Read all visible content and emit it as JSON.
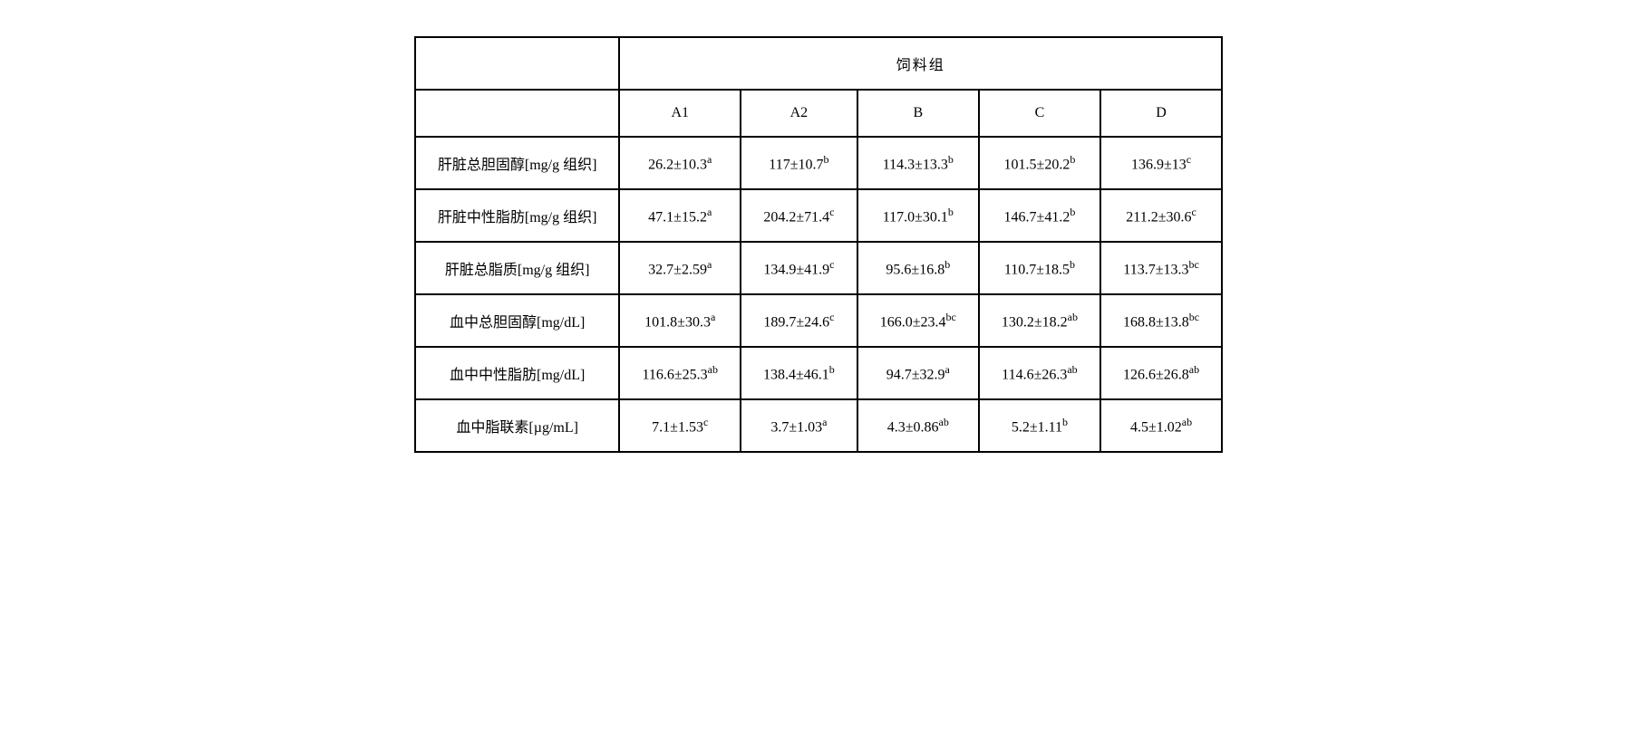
{
  "table": {
    "type": "table",
    "header_group_label": "饲料组",
    "columns": [
      "A1",
      "A2",
      "B",
      "C",
      "D"
    ],
    "header_fontsize": 20,
    "cell_fontsize": 20,
    "border_color": "#000000",
    "background_color": "#ffffff",
    "text_color": "#000000",
    "border_width": 2,
    "cell_padding_v": 16,
    "cell_padding_h": 24,
    "rows": [
      {
        "label": "肝脏总胆固醇[mg/g 组织]",
        "values": [
          {
            "val": "26.2±10.3",
            "sup": "a"
          },
          {
            "val": "117±10.7",
            "sup": "b"
          },
          {
            "val": "114.3±13.3",
            "sup": "b"
          },
          {
            "val": "101.5±20.2",
            "sup": "b"
          },
          {
            "val": "136.9±13",
            "sup": "c"
          }
        ]
      },
      {
        "label": "肝脏中性脂肪[mg/g 组织]",
        "values": [
          {
            "val": "47.1±15.2",
            "sup": "a"
          },
          {
            "val": "204.2±71.4",
            "sup": "c"
          },
          {
            "val": "117.0±30.1",
            "sup": "b"
          },
          {
            "val": "146.7±41.2",
            "sup": "b"
          },
          {
            "val": "211.2±30.6",
            "sup": "c"
          }
        ]
      },
      {
        "label": "肝脏总脂质[mg/g 组织]",
        "values": [
          {
            "val": "32.7±2.59",
            "sup": "a"
          },
          {
            "val": "134.9±41.9",
            "sup": "c"
          },
          {
            "val": "95.6±16.8",
            "sup": "b"
          },
          {
            "val": "110.7±18.5",
            "sup": "b"
          },
          {
            "val": "113.7±13.3",
            "sup": "bc"
          }
        ]
      },
      {
        "label": "血中总胆固醇[mg/dL]",
        "values": [
          {
            "val": "101.8±30.3",
            "sup": "a"
          },
          {
            "val": "189.7±24.6",
            "sup": "c"
          },
          {
            "val": "166.0±23.4",
            "sup": "bc"
          },
          {
            "val": "130.2±18.2",
            "sup": "ab"
          },
          {
            "val": "168.8±13.8",
            "sup": "bc"
          }
        ]
      },
      {
        "label": "血中中性脂肪[mg/dL]",
        "values": [
          {
            "val": "116.6±25.3",
            "sup": "ab"
          },
          {
            "val": "138.4±46.1",
            "sup": "b"
          },
          {
            "val": "94.7±32.9",
            "sup": "a"
          },
          {
            "val": "114.6±26.3",
            "sup": "ab"
          },
          {
            "val": "126.6±26.8",
            "sup": "ab"
          }
        ]
      },
      {
        "label": "血中脂联素[µg/mL]",
        "values": [
          {
            "val": "7.1±1.53",
            "sup": "c"
          },
          {
            "val": "3.7±1.03",
            "sup": "a"
          },
          {
            "val": "4.3±0.86",
            "sup": "ab"
          },
          {
            "val": "5.2±1.11",
            "sup": "b"
          },
          {
            "val": "4.5±1.02",
            "sup": "ab"
          }
        ]
      }
    ]
  }
}
